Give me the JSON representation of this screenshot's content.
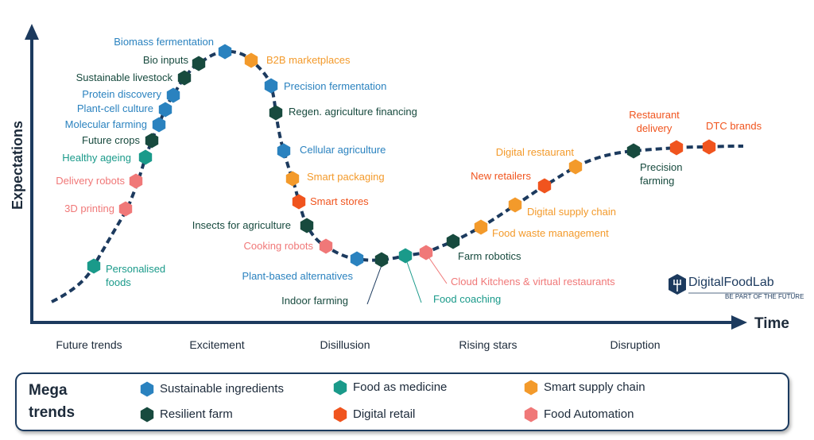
{
  "axes": {
    "y_label": "Expectations",
    "x_label": "Time"
  },
  "phases": [
    "Future trends",
    "Excitement",
    "Disillusion",
    "Rising stars",
    "Disruption"
  ],
  "logo": {
    "name": "DigitalFoodLab",
    "tagline": "BE PART OF THE FUTURE"
  },
  "legend": {
    "title": "Mega trends"
  },
  "mega_trends": [
    {
      "name": "Sustainable ingredients",
      "color": "#2a82bf",
      "items": [
        "Biomass fermentation",
        "Protein discovery",
        "Plant-cell culture",
        "Molecular farming",
        "Precision fermentation",
        "Cellular agriculture",
        "Plant-based alternatives"
      ]
    },
    {
      "name": "Resilient farm",
      "color": "#174a3e",
      "items": [
        "Bio inputs",
        "Sustainable livestock",
        "Future crops",
        "Regen. agriculture financing",
        "Insects for agriculture",
        "Indoor farming",
        "Farm robotics",
        "Precision farming"
      ]
    },
    {
      "name": "Food as medicine",
      "color": "#1a9a8a",
      "items": [
        "Healthy ageing",
        "Personalised foods",
        "Food coaching"
      ]
    },
    {
      "name": "Digital retail",
      "color": "#f0541e",
      "items": [
        "Smart stores",
        "New retailers",
        "Restaurant delivery",
        "DTC brands"
      ]
    },
    {
      "name": "Smart supply chain",
      "color": "#f39a2b",
      "items": [
        "B2B marketplaces",
        "Smart packaging",
        "Food waste management",
        "Digital supply chain",
        "Digital restaurant"
      ]
    },
    {
      "name": "Food Automation",
      "color": "#f07878",
      "items": [
        "Delivery robots",
        "3D printing",
        "Cooking robots",
        "Cloud Kitchens & virtual restaurants"
      ]
    }
  ]
}
